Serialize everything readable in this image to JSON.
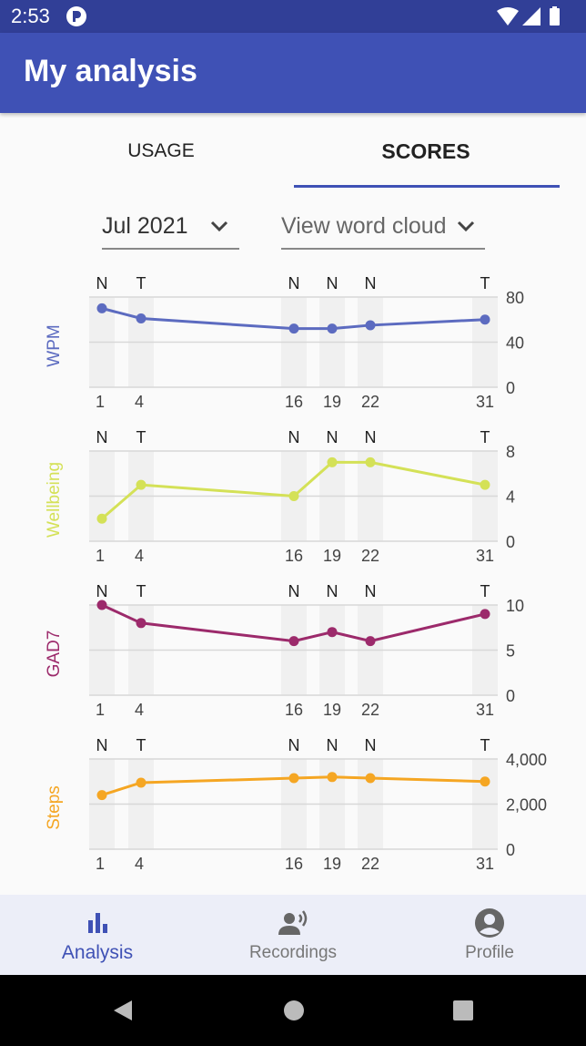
{
  "status_bar": {
    "time": "2:53"
  },
  "app_bar": {
    "title": "My analysis"
  },
  "tabs": [
    {
      "label": "USAGE",
      "selected": false
    },
    {
      "label": "SCORES",
      "selected": true
    }
  ],
  "filters": {
    "month": "Jul 2021",
    "view": "View word cloud"
  },
  "colors": {
    "primary": "#3f51b5",
    "primary_dark": "#313f97",
    "wpm": "#5c6bc0",
    "wellbeing": "#d4e157",
    "gad7": "#9c2a6b",
    "steps": "#f5a623"
  },
  "chart_data": [
    {
      "type": "line",
      "ylabel": "WPM",
      "x": [
        1,
        4,
        16,
        19,
        22,
        31
      ],
      "day_type_labels": [
        "N",
        "T",
        "N",
        "N",
        "N",
        "T"
      ],
      "y_ticks": [
        "80",
        "40",
        "0"
      ],
      "ylim": [
        0,
        80
      ],
      "values": [
        70,
        61,
        52,
        52,
        55,
        60
      ],
      "color": "#5c6bc0",
      "grid": true
    },
    {
      "type": "line",
      "ylabel": "Wellbeing",
      "x": [
        1,
        4,
        16,
        19,
        22,
        31
      ],
      "day_type_labels": [
        "N",
        "T",
        "N",
        "N",
        "N",
        "T"
      ],
      "y_ticks": [
        "8",
        "4",
        "0"
      ],
      "ylim": [
        0,
        8
      ],
      "values": [
        2,
        5,
        4,
        7,
        7,
        5
      ],
      "color": "#d4e157",
      "grid": true
    },
    {
      "type": "line",
      "ylabel": "GAD7",
      "x": [
        1,
        4,
        16,
        19,
        22,
        31
      ],
      "day_type_labels": [
        "N",
        "T",
        "N",
        "N",
        "N",
        "T"
      ],
      "y_ticks": [
        "10",
        "5",
        "0"
      ],
      "ylim": [
        0,
        10
      ],
      "values": [
        10,
        8,
        6,
        7,
        6,
        9
      ],
      "color": "#9c2a6b",
      "grid": true
    },
    {
      "type": "line",
      "ylabel": "Steps",
      "x": [
        1,
        4,
        16,
        19,
        22,
        31
      ],
      "day_type_labels": [
        "N",
        "T",
        "N",
        "N",
        "N",
        "T"
      ],
      "y_ticks": [
        "4,000",
        "2,000",
        "0"
      ],
      "ylim": [
        0,
        4000
      ],
      "values": [
        2400,
        2950,
        3150,
        3200,
        3150,
        3000
      ],
      "color": "#f5a623",
      "grid": true
    }
  ],
  "bottom_nav": [
    {
      "label": "Analysis",
      "icon": "bar-chart-icon",
      "selected": true
    },
    {
      "label": "Recordings",
      "icon": "voice-recording-icon",
      "selected": false
    },
    {
      "label": "Profile",
      "icon": "account-circle-icon",
      "selected": false
    }
  ]
}
